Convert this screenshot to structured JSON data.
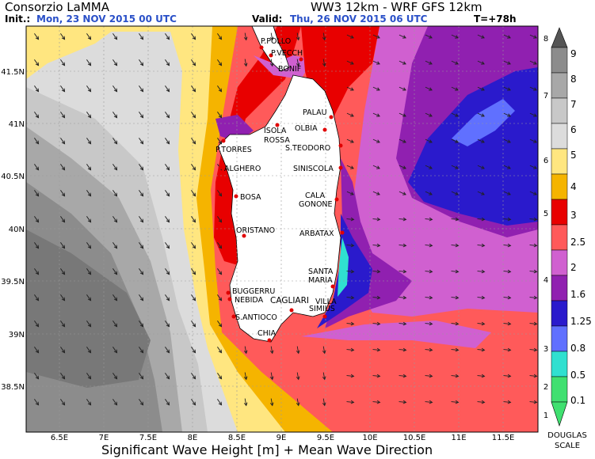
{
  "header": {
    "organization": "Consorzio LaMMA",
    "model": "WW3 12km - WRF GFS 12km",
    "init_label": "Init.:",
    "init_value": "Mon, 23 NOV 2015   00 UTC",
    "valid_label": "Valid:",
    "valid_value": "Thu, 26 NOV 2015   06 UTC",
    "forecast_step": "T=+78h"
  },
  "footer": {
    "title": "Significant Wave Height [m] + Mean Wave Direction"
  },
  "axes": {
    "lon_ticks": [
      "6.5E",
      "7E",
      "7.5E",
      "8E",
      "8.5E",
      "9E",
      "9.5E",
      "10E",
      "10.5E",
      "11E",
      "11.5E"
    ],
    "lat_ticks": [
      "41.5N",
      "41N",
      "40.5N",
      "40N",
      "39.5N",
      "39N",
      "38.5N"
    ],
    "lon_values": [
      6.5,
      7,
      7.5,
      8,
      8.5,
      9,
      9.5,
      10,
      10.5,
      11,
      11.5
    ],
    "lat_values": [
      41.5,
      41,
      40.5,
      40,
      39.5,
      39,
      38.5
    ]
  },
  "places": [
    {
      "name": "P.POLLO"
    },
    {
      "name": "P.VECCH"
    },
    {
      "name": "BONIF"
    },
    {
      "name": "PALAU"
    },
    {
      "name": "ISOLA"
    },
    {
      "name": "ROSSA"
    },
    {
      "name": "OLBIA"
    },
    {
      "name": "P.TORRES"
    },
    {
      "name": "S.TEODORO"
    },
    {
      "name": "ALGHERO"
    },
    {
      "name": "SINISCOLA"
    },
    {
      "name": "BOSA"
    },
    {
      "name": "CALA"
    },
    {
      "name": "GONONE"
    },
    {
      "name": "ORISTANO"
    },
    {
      "name": "ARBATAX"
    },
    {
      "name": "SANTA"
    },
    {
      "name": "MARIA"
    },
    {
      "name": "BUGGERRU"
    },
    {
      "name": "NEBIDA"
    },
    {
      "name": "CAGLIARI"
    },
    {
      "name": "VILLA"
    },
    {
      "name": "SIMIUS"
    },
    {
      "name": "S.ANTIOCO"
    },
    {
      "name": "CHIA"
    }
  ],
  "legend": {
    "wave_height_labels": [
      "9",
      "8",
      "7",
      "6",
      "5",
      "4",
      "3",
      "2.5",
      "2",
      "1.6",
      "1.25",
      "0.8",
      "0.5",
      "0.1"
    ],
    "colors": [
      "#787878",
      "#8c8c8c",
      "#a8a8a8",
      "#c8c8c8",
      "#dcdcdc",
      "#ffe680",
      "#f5b400",
      "#e80000",
      "#ff5a5a",
      "#d060d0",
      "#9020b0",
      "#2a1acc",
      "#6070ff",
      "#30e0d0",
      "#40e070"
    ],
    "douglas_labels": [
      "8",
      "7",
      "6",
      "5",
      "4",
      "3",
      "2",
      "1"
    ],
    "scale_name_line1": "DOUGLAS",
    "scale_name_line2": "SCALE"
  }
}
